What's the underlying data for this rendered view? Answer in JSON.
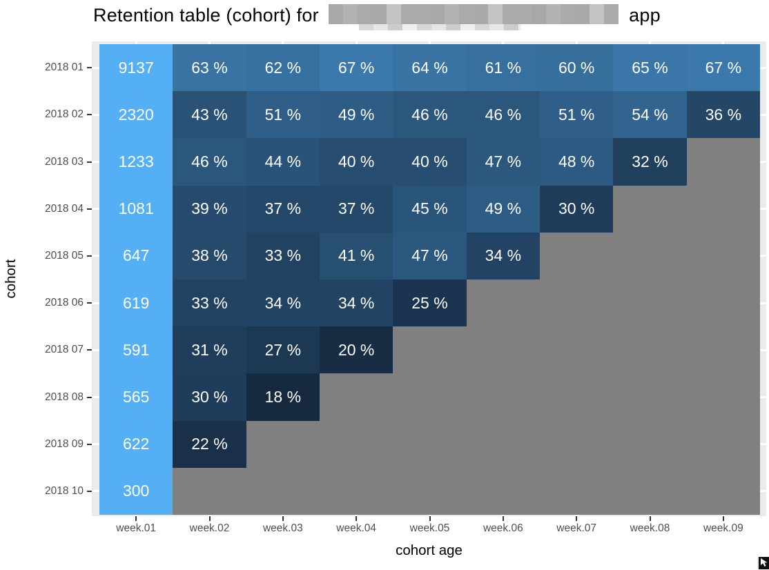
{
  "title": {
    "prefix": "Retention table (cohort) for",
    "suffix": "app"
  },
  "colors": {
    "panel_background": "#EBEBEB",
    "gridline": "#FFFFFF",
    "na_cell": "#808080",
    "cohort_size_cell": "#54AFF5",
    "scale_low_color": "#16293F",
    "scale_high_color": "#54AFF5",
    "cell_text": "#FFFFFF",
    "tick_label": "#4D4D4D",
    "tick_mark": "#333333",
    "title_text": "#000000"
  },
  "chart_data": {
    "type": "heatmap",
    "title": "Retention table (cohort) for [redacted] app",
    "xlabel": "cohort age",
    "ylabel": "cohort",
    "x_categories": [
      "week.01",
      "week.02",
      "week.03",
      "week.04",
      "week.05",
      "week.06",
      "week.07",
      "week.08",
      "week.09"
    ],
    "y_categories": [
      "2018 01",
      "2018 02",
      "2018 03",
      "2018 04",
      "2018 05",
      "2018 06",
      "2018 07",
      "2018 08",
      "2018 09",
      "2018 10"
    ],
    "cohort_sizes": [
      9137,
      2320,
      1233,
      1081,
      647,
      619,
      591,
      565,
      622,
      300
    ],
    "retention_pct_by_week": [
      [
        63,
        62,
        67,
        64,
        61,
        60,
        65,
        67
      ],
      [
        43,
        51,
        49,
        46,
        46,
        51,
        54,
        36
      ],
      [
        46,
        44,
        40,
        40,
        47,
        48,
        32
      ],
      [
        39,
        37,
        37,
        45,
        49,
        30
      ],
      [
        38,
        33,
        41,
        47,
        34
      ],
      [
        33,
        34,
        34,
        25
      ],
      [
        31,
        27,
        20
      ],
      [
        30,
        18
      ],
      [
        22
      ],
      []
    ],
    "value_suffix": " %",
    "color_scale": {
      "low_value": 18,
      "high_value": 100,
      "low_color": "#16293F",
      "high_color": "#54AFF5",
      "na_color": "#808080"
    },
    "grid": true,
    "legend": "none"
  }
}
